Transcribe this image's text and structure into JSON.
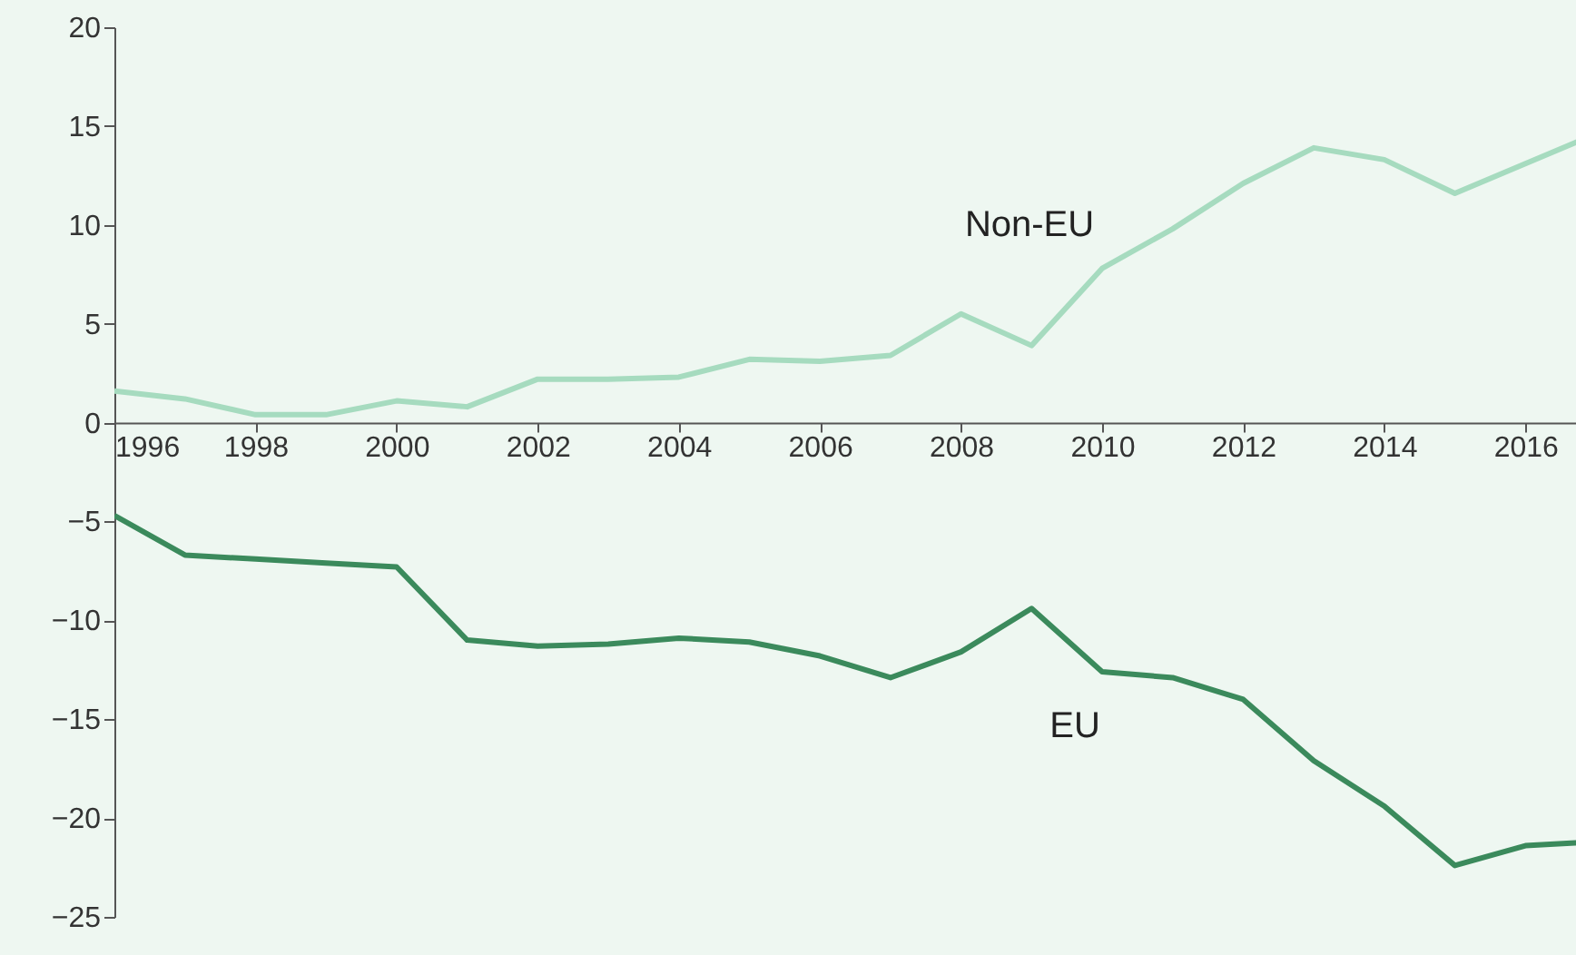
{
  "chart_data": {
    "type": "line",
    "x": [
      1996,
      1997,
      1998,
      1999,
      2000,
      2001,
      2002,
      2003,
      2004,
      2005,
      2006,
      2007,
      2008,
      2009,
      2010,
      2011,
      2012,
      2013,
      2014,
      2015,
      2016,
      2017
    ],
    "series": [
      {
        "name": "Non-EU",
        "color": "#a6dbbf",
        "values": [
          1.6,
          1.2,
          0.4,
          0.4,
          1.1,
          0.8,
          2.2,
          2.2,
          2.3,
          3.2,
          3.1,
          3.4,
          5.5,
          3.9,
          7.8,
          9.8,
          12.1,
          13.9,
          13.3,
          11.6,
          13.1,
          14.6
        ]
      },
      {
        "name": "EU",
        "color": "#3b8a5c",
        "values": [
          -4.7,
          -6.7,
          -6.9,
          -7.1,
          -7.3,
          -11.0,
          -11.3,
          -11.2,
          -10.9,
          -11.1,
          -11.8,
          -12.9,
          -11.6,
          -9.4,
          -12.6,
          -12.9,
          -14.0,
          -17.1,
          -19.4,
          -22.4,
          -21.4,
          -21.2
        ]
      }
    ],
    "xlim": [
      1996,
      2017
    ],
    "xticks": [
      1996,
      1998,
      2000,
      2002,
      2004,
      2006,
      2008,
      2010,
      2012,
      2014,
      2016
    ],
    "ylim": [
      -25,
      20
    ],
    "yticks": [
      -25,
      -20,
      -15,
      -10,
      -5,
      0,
      5,
      10,
      15,
      20
    ],
    "grid": false,
    "legend": false,
    "marker": "none",
    "line_style": "solid"
  }
}
